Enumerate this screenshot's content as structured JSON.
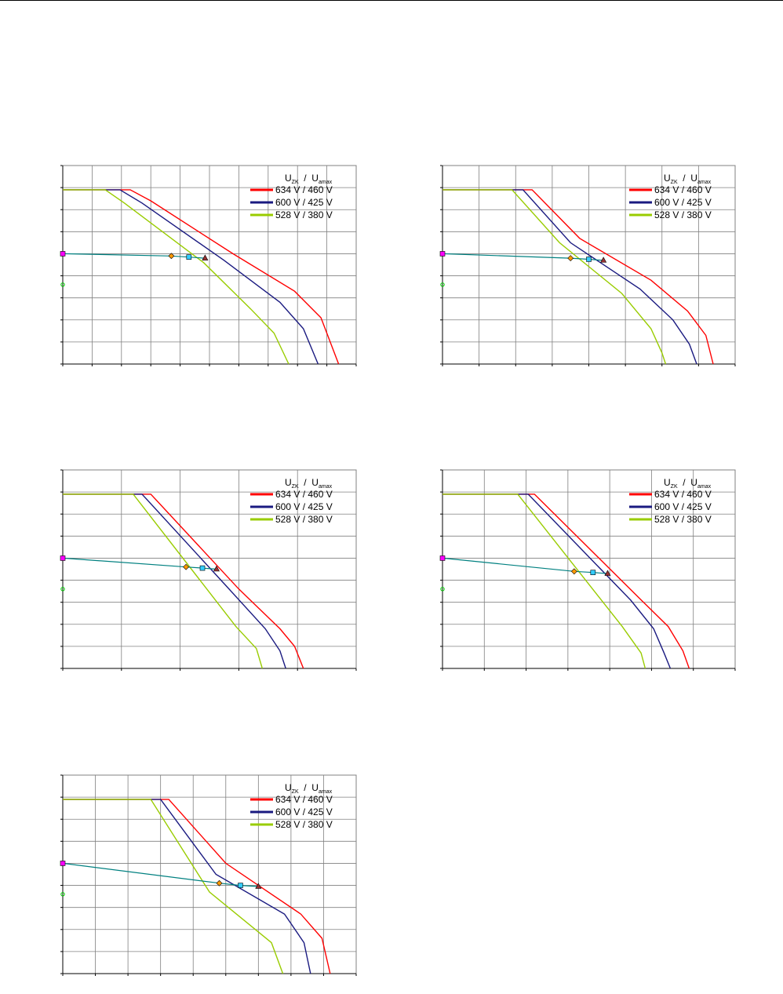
{
  "legend_heading": {
    "main1": "U",
    "sub1": "ZK",
    "sep": "  /  ",
    "main2": "U",
    "sub2": "amax"
  },
  "colors": {
    "series": [
      "#ff0000",
      "#1a1a80",
      "#99cc00"
    ],
    "operating_line": "#008080",
    "grid": "#808080",
    "marker_start_pink": "#ff00ff",
    "marker_green": "#00cc00",
    "marker_diamond": "#ff9900",
    "marker_square": "#33ccff",
    "marker_triangle": "#993333"
  },
  "chart_data": [
    {
      "type": "line",
      "xlim": [
        0,
        10
      ],
      "ylim": [
        0,
        9
      ],
      "x_gridlines": 10,
      "y_gridlines": 9,
      "grid": true,
      "legend": "top-right",
      "series": [
        {
          "name": "634 V / 460 V",
          "x": [
            0,
            2.3,
            3.0,
            5.8,
            7.9,
            8.8,
            9.4
          ],
          "y": [
            7.9,
            7.9,
            7.4,
            5.0,
            3.3,
            2.1,
            0
          ]
        },
        {
          "name": "600 V / 425 V",
          "x": [
            0,
            1.95,
            2.7,
            5.5,
            7.4,
            8.2,
            8.7
          ],
          "y": [
            7.9,
            7.9,
            7.3,
            4.7,
            2.8,
            1.6,
            0
          ]
        },
        {
          "name": "528 V / 380 V",
          "x": [
            0,
            1.45,
            2.1,
            4.8,
            6.4,
            7.2,
            7.7
          ],
          "y": [
            7.9,
            7.9,
            7.3,
            4.6,
            2.5,
            1.4,
            0
          ]
        }
      ],
      "operating_line": {
        "x": [
          0,
          3.7,
          4.3,
          4.85
        ],
        "y": [
          5.0,
          4.9,
          4.85,
          4.8
        ]
      },
      "marker_green": {
        "x": 0,
        "y": 3.6
      }
    },
    {
      "type": "line",
      "xlim": [
        0,
        8
      ],
      "ylim": [
        0,
        9
      ],
      "x_gridlines": 8,
      "y_gridlines": 9,
      "grid": true,
      "legend": "top-right",
      "series": [
        {
          "name": "634 V / 460 V",
          "x": [
            0,
            2.45,
            3.75,
            5.7,
            6.7,
            7.2,
            7.4
          ],
          "y": [
            7.9,
            7.9,
            5.7,
            3.8,
            2.4,
            1.3,
            0
          ]
        },
        {
          "name": "600 V / 425 V",
          "x": [
            0,
            2.2,
            3.5,
            5.4,
            6.3,
            6.75,
            6.95
          ],
          "y": [
            7.9,
            7.9,
            5.5,
            3.4,
            2.0,
            0.9,
            0
          ]
        },
        {
          "name": "528 V / 380 V",
          "x": [
            0,
            1.9,
            3.2,
            4.9,
            5.7,
            6.0,
            6.1
          ],
          "y": [
            7.9,
            7.9,
            5.5,
            3.2,
            1.6,
            0.5,
            0
          ]
        }
      ],
      "operating_line": {
        "x": [
          0,
          3.5,
          4.0,
          4.4
        ],
        "y": [
          5.0,
          4.8,
          4.75,
          4.7
        ]
      },
      "marker_green": {
        "x": 0,
        "y": 3.6
      }
    },
    {
      "type": "line",
      "xlim": [
        0,
        5
      ],
      "ylim": [
        0,
        9
      ],
      "x_gridlines": 5,
      "y_gridlines": 9,
      "grid": true,
      "legend": "top-right",
      "series": [
        {
          "name": "634 V / 460 V",
          "x": [
            0,
            1.5,
            3.0,
            3.7,
            3.95,
            4.1
          ],
          "y": [
            7.9,
            7.9,
            3.6,
            1.8,
            1.0,
            0
          ]
        },
        {
          "name": "600 V / 425 V",
          "x": [
            0,
            1.35,
            2.8,
            3.45,
            3.7,
            3.8
          ],
          "y": [
            7.9,
            7.9,
            3.7,
            1.8,
            0.8,
            0
          ]
        },
        {
          "name": "528 V / 380 V",
          "x": [
            0,
            1.2,
            2.95,
            3.3,
            3.4
          ],
          "y": [
            7.9,
            7.9,
            1.9,
            0.9,
            0
          ]
        }
      ],
      "operating_line": {
        "x": [
          0,
          2.1,
          2.38,
          2.62
        ],
        "y": [
          5.0,
          4.6,
          4.55,
          4.5
        ]
      },
      "marker_green": {
        "x": 0,
        "y": 3.6
      }
    },
    {
      "type": "line",
      "xlim": [
        0,
        7
      ],
      "ylim": [
        0,
        9
      ],
      "x_gridlines": 7,
      "y_gridlines": 9,
      "grid": true,
      "legend": "top-right",
      "series": [
        {
          "name": "634 V / 460 V",
          "x": [
            0,
            2.2,
            4.7,
            5.4,
            5.75,
            5.9
          ],
          "y": [
            7.9,
            7.9,
            3.2,
            1.9,
            0.8,
            0
          ]
        },
        {
          "name": "600 V / 425 V",
          "x": [
            0,
            2.05,
            4.5,
            5.05,
            5.3,
            5.45
          ],
          "y": [
            7.9,
            7.9,
            3.1,
            1.8,
            0.7,
            0
          ]
        },
        {
          "name": "528 V / 380 V",
          "x": [
            0,
            1.8,
            4.3,
            4.75,
            4.85
          ],
          "y": [
            7.9,
            7.9,
            1.9,
            0.7,
            0
          ]
        }
      ],
      "operating_line": {
        "x": [
          0,
          3.15,
          3.6,
          3.95
        ],
        "y": [
          5.0,
          4.4,
          4.35,
          4.3
        ]
      },
      "marker_green": {
        "x": 0,
        "y": 3.6
      }
    },
    {
      "type": "line",
      "xlim": [
        0,
        9
      ],
      "ylim": [
        0,
        9
      ],
      "x_gridlines": 9,
      "y_gridlines": 9,
      "grid": true,
      "legend": "top-right",
      "series": [
        {
          "name": "634 V / 460 V",
          "x": [
            0,
            3.25,
            5.0,
            7.3,
            7.95,
            8.2
          ],
          "y": [
            7.9,
            7.9,
            5.0,
            2.7,
            1.6,
            0
          ]
        },
        {
          "name": "600 V / 425 V",
          "x": [
            0,
            3.0,
            4.7,
            6.8,
            7.4,
            7.6
          ],
          "y": [
            7.9,
            7.9,
            4.5,
            2.7,
            1.4,
            0
          ]
        },
        {
          "name": "528 V / 380 V",
          "x": [
            0,
            2.7,
            4.5,
            6.4,
            6.75
          ],
          "y": [
            7.9,
            7.9,
            3.7,
            1.4,
            0
          ]
        }
      ],
      "operating_line": {
        "x": [
          0,
          4.8,
          5.45,
          6.0
        ],
        "y": [
          5.0,
          4.1,
          4.0,
          3.95
        ]
      },
      "marker_green": {
        "x": 0,
        "y": 3.6
      }
    }
  ]
}
